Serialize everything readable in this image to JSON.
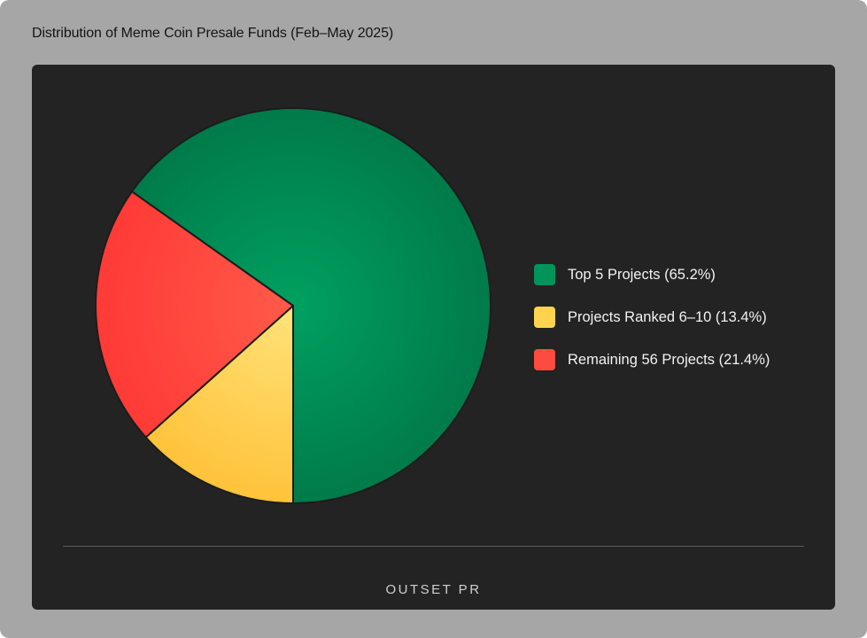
{
  "header": {
    "title": "Distribution of Meme Coin Presale Funds (Feb–May 2025)"
  },
  "chart_data": {
    "type": "pie",
    "title": "Distribution of Meme Coin Presale Funds (Feb–May 2025)",
    "legend_position": "right",
    "slices": [
      {
        "label": "Top 5 Projects (65.2%)",
        "value": 65.2,
        "color": "#00945a"
      },
      {
        "label": "Projects Ranked 6–10 (13.4%)",
        "value": 13.4,
        "color": "#ffd34e"
      },
      {
        "label": "Remaining 56 Projects (21.4%)",
        "value": 21.4,
        "color": "#ff4a40"
      }
    ]
  },
  "footer": {
    "brand": "OUTSET PR"
  }
}
